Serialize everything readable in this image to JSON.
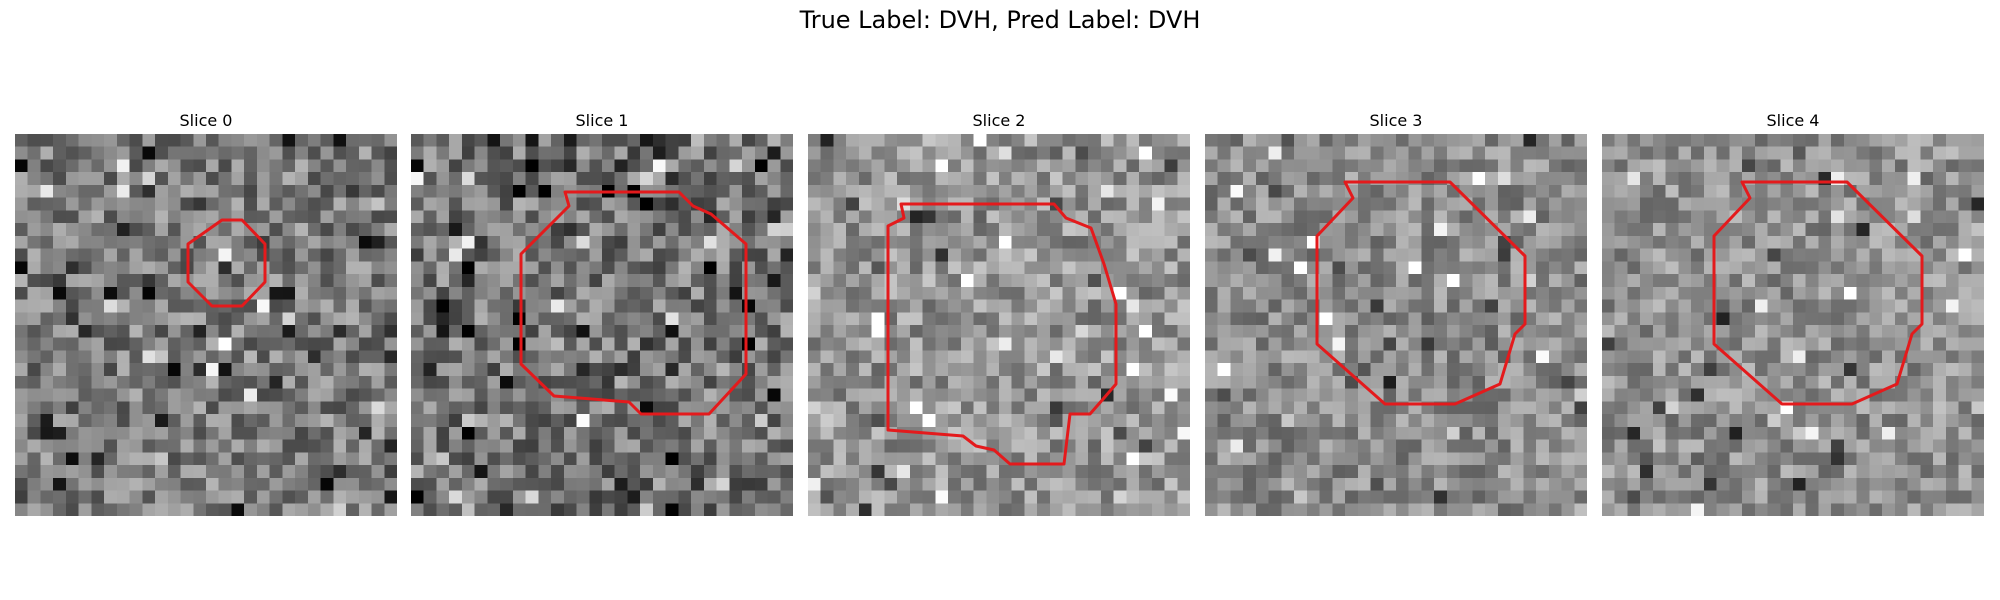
{
  "figure": {
    "title": "True Label: DVH, Pred Label: DVH"
  },
  "contour_color": "#e41a1c",
  "slices": [
    {
      "title": "Slice 0"
    },
    {
      "title": "Slice 1"
    },
    {
      "title": "Slice 2"
    },
    {
      "title": "Slice 3"
    },
    {
      "title": "Slice 4"
    }
  ]
}
